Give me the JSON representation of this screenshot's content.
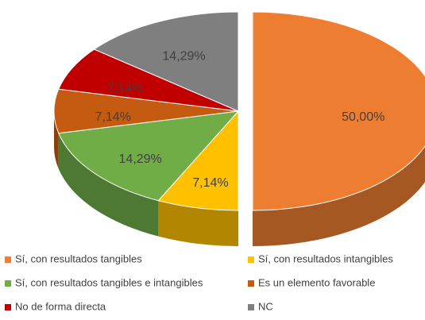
{
  "chart_data": {
    "type": "pie",
    "categories": [
      "Sí, con resultados tangibles",
      "Sí, con resultados intangibles",
      "Sí, con resultados tangibles e intangibles",
      "Es un elemento favorable",
      "No de forma directa",
      "NC"
    ],
    "values": [
      50,
      7.14,
      14.29,
      7.14,
      7.14,
      14.29
    ],
    "value_labels": [
      "50,00%",
      "7,14%",
      "14,29%",
      "7,14%",
      "7,14%",
      "14,29%"
    ],
    "colors": [
      "#ed7d31",
      "#ffc000",
      "#70ad47",
      "#c55a11",
      "#c00000",
      "#7f7f7f"
    ]
  }
}
